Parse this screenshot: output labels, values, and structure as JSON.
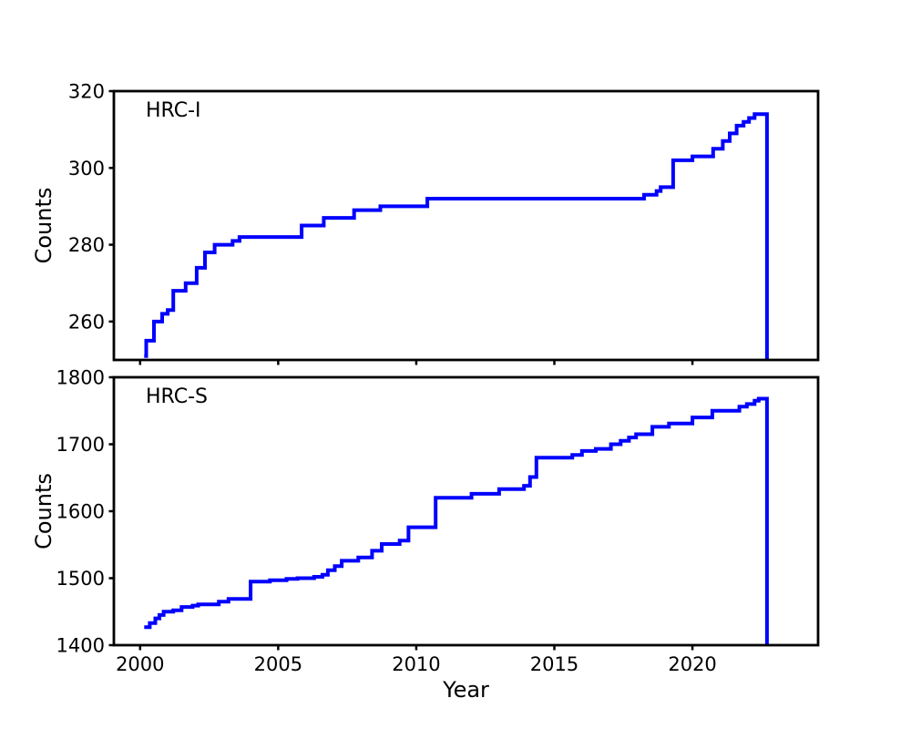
{
  "figure": {
    "background": "#ffffff",
    "frame_color": "#000000",
    "line_color": "#0000ff"
  },
  "chart_data": [
    {
      "type": "line",
      "style": "cumulative-step",
      "label": "HRC-I",
      "ylabel": "Counts",
      "xlabel": "",
      "ylim": [
        250,
        320
      ],
      "yticks": [
        260,
        280,
        300,
        320
      ],
      "xlim": [
        1999.05,
        2024.55
      ],
      "xticks": [
        2000,
        2005,
        2010,
        2015,
        2020
      ],
      "show_x_tick_labels": false,
      "grid": false,
      "legend": "none",
      "line_color": "#0000ff",
      "final_drop_year": 2022.7,
      "points": [
        [
          2000.15,
          251
        ],
        [
          2000.22,
          255
        ],
        [
          2000.5,
          260
        ],
        [
          2000.8,
          262
        ],
        [
          2001.0,
          263
        ],
        [
          2001.2,
          268
        ],
        [
          2001.65,
          270
        ],
        [
          2002.05,
          274
        ],
        [
          2002.35,
          278
        ],
        [
          2002.7,
          280
        ],
        [
          2003.35,
          281
        ],
        [
          2003.6,
          282
        ],
        [
          2005.85,
          285
        ],
        [
          2006.65,
          287
        ],
        [
          2007.75,
          289
        ],
        [
          2008.7,
          290
        ],
        [
          2010.4,
          292
        ],
        [
          2018.25,
          293
        ],
        [
          2018.7,
          294
        ],
        [
          2018.85,
          295
        ],
        [
          2019.3,
          302
        ],
        [
          2020.0,
          303
        ],
        [
          2020.75,
          305
        ],
        [
          2021.1,
          307
        ],
        [
          2021.35,
          309
        ],
        [
          2021.6,
          311
        ],
        [
          2021.85,
          312
        ],
        [
          2022.05,
          313
        ],
        [
          2022.25,
          314
        ]
      ]
    },
    {
      "type": "line",
      "style": "cumulative-step",
      "label": "HRC-S",
      "ylabel": "Counts",
      "xlabel": "Year",
      "ylim": [
        1400,
        1800
      ],
      "yticks": [
        1400,
        1500,
        1600,
        1700,
        1800
      ],
      "xlim": [
        1999.05,
        2024.55
      ],
      "xticks": [
        2000,
        2005,
        2010,
        2015,
        2020
      ],
      "show_x_tick_labels": true,
      "grid": false,
      "legend": "none",
      "line_color": "#0000ff",
      "final_drop_year": 2022.7,
      "points": [
        [
          2000.15,
          1427
        ],
        [
          2000.35,
          1433
        ],
        [
          2000.55,
          1440
        ],
        [
          2000.7,
          1445
        ],
        [
          2000.85,
          1450
        ],
        [
          2001.2,
          1452
        ],
        [
          2001.5,
          1457
        ],
        [
          2001.9,
          1459
        ],
        [
          2002.1,
          1461
        ],
        [
          2002.85,
          1465
        ],
        [
          2003.2,
          1469
        ],
        [
          2004.0,
          1495
        ],
        [
          2004.7,
          1497
        ],
        [
          2005.3,
          1499
        ],
        [
          2005.7,
          1500
        ],
        [
          2006.3,
          1502
        ],
        [
          2006.6,
          1505
        ],
        [
          2006.8,
          1512
        ],
        [
          2007.05,
          1518
        ],
        [
          2007.3,
          1526
        ],
        [
          2007.9,
          1531
        ],
        [
          2008.4,
          1541
        ],
        [
          2008.75,
          1551
        ],
        [
          2009.4,
          1556
        ],
        [
          2009.72,
          1576
        ],
        [
          2010.7,
          1620
        ],
        [
          2012.0,
          1626
        ],
        [
          2013.0,
          1633
        ],
        [
          2013.9,
          1638
        ],
        [
          2014.12,
          1651
        ],
        [
          2014.35,
          1680
        ],
        [
          2015.65,
          1684
        ],
        [
          2016.0,
          1690
        ],
        [
          2016.5,
          1693
        ],
        [
          2017.05,
          1700
        ],
        [
          2017.4,
          1705
        ],
        [
          2017.7,
          1710
        ],
        [
          2017.96,
          1715
        ],
        [
          2018.55,
          1726
        ],
        [
          2019.15,
          1731
        ],
        [
          2020.0,
          1740
        ],
        [
          2020.72,
          1750
        ],
        [
          2021.7,
          1756
        ],
        [
          2021.97,
          1760
        ],
        [
          2022.25,
          1765
        ],
        [
          2022.4,
          1768
        ]
      ]
    }
  ]
}
